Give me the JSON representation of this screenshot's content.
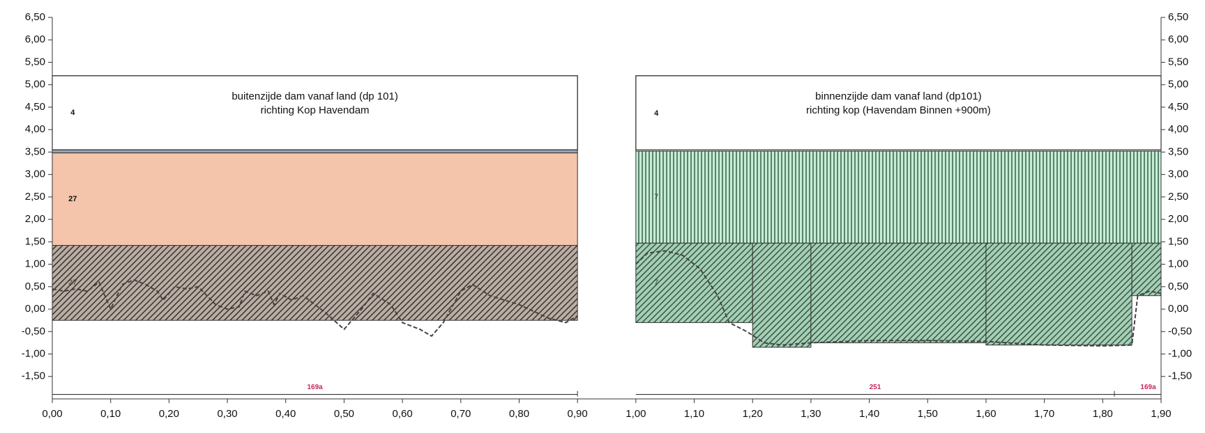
{
  "chart_data": {
    "type": "profile",
    "xlim": [
      0,
      1.9
    ],
    "ylim": [
      -2.0,
      6.5
    ],
    "yticks": [
      {
        "value": 6.5,
        "label": "6,50"
      },
      {
        "value": 6.0,
        "label": "6,00"
      },
      {
        "value": 5.5,
        "label": "5,50"
      },
      {
        "value": 5.0,
        "label": "5,00"
      },
      {
        "value": 4.5,
        "label": "4,50"
      },
      {
        "value": 4.0,
        "label": "4,00"
      },
      {
        "value": 3.5,
        "label": "3,50"
      },
      {
        "value": 3.0,
        "label": "3,00"
      },
      {
        "value": 2.5,
        "label": "2,50"
      },
      {
        "value": 2.0,
        "label": "2,00"
      },
      {
        "value": 1.5,
        "label": "1,50"
      },
      {
        "value": 1.0,
        "label": "1,00"
      },
      {
        "value": 0.5,
        "label": "0,50"
      },
      {
        "value": 0.0,
        "label": "0,00"
      },
      {
        "value": -0.5,
        "label": "-0,50"
      },
      {
        "value": -1.0,
        "label": "-1,00"
      },
      {
        "value": -1.5,
        "label": "-1,50"
      }
    ],
    "xticks": [
      {
        "value": 0.0,
        "label": "0,00"
      },
      {
        "value": 0.1,
        "label": "0,10"
      },
      {
        "value": 0.2,
        "label": "0,20"
      },
      {
        "value": 0.3,
        "label": "0,30"
      },
      {
        "value": 0.4,
        "label": "0,40"
      },
      {
        "value": 0.5,
        "label": "0,50"
      },
      {
        "value": 0.6,
        "label": "0,60"
      },
      {
        "value": 0.7,
        "label": "0,70"
      },
      {
        "value": 0.8,
        "label": "0,80"
      },
      {
        "value": 0.9,
        "label": "0,90"
      },
      {
        "value": 1.0,
        "label": "1,00"
      },
      {
        "value": 1.1,
        "label": "1,10"
      },
      {
        "value": 1.2,
        "label": "1,20"
      },
      {
        "value": 1.3,
        "label": "1,30"
      },
      {
        "value": 1.4,
        "label": "1,40"
      },
      {
        "value": 1.5,
        "label": "1,50"
      },
      {
        "value": 1.6,
        "label": "1,60"
      },
      {
        "value": 1.7,
        "label": "1,70"
      },
      {
        "value": 1.8,
        "label": "1,80"
      },
      {
        "value": 1.9,
        "label": "1,90"
      }
    ],
    "panels": [
      {
        "x0": 0.0,
        "x1": 0.9,
        "top": 5.2,
        "title": [
          "buitenzijde dam vanaf land (dp 101)",
          "richting Kop Havendam"
        ]
      },
      {
        "x0": 1.0,
        "x1": 1.9,
        "top": 5.2,
        "title": [
          "binnenzijde dam vanaf land (dp101)",
          "richting kop (Havendam Binnen +900m)"
        ]
      }
    ],
    "layers": [
      {
        "x0": 0.0,
        "x1": 0.9,
        "bottom": 3.55,
        "top": 5.2,
        "label": "4",
        "pattern": "plain",
        "color": "#ffffff"
      },
      {
        "x0": 0.0,
        "x1": 0.9,
        "bottom": 3.48,
        "top": 3.55,
        "pattern": "plain",
        "color": "#9aa3b0"
      },
      {
        "x0": 0.0,
        "x1": 0.9,
        "bottom": 1.42,
        "top": 3.48,
        "label": "27",
        "pattern": "plain",
        "color": "#f4c4ab"
      },
      {
        "x0": 0.0,
        "x1": 0.9,
        "bottom": -0.25,
        "top": 1.42,
        "label": "27",
        "pattern": "diagonal",
        "color": "#8e7f74"
      },
      {
        "x0": 1.0,
        "x1": 1.9,
        "bottom": 3.52,
        "top": 5.2,
        "label": "4",
        "pattern": "plain",
        "color": "#ffffff"
      },
      {
        "x0": 1.0,
        "x1": 1.9,
        "bottom": 1.47,
        "top": 3.52,
        "label": "7",
        "pattern": "vertical",
        "color": "#bfe7cf"
      },
      {
        "x0": 1.0,
        "x1": 1.2,
        "bottom": -0.3,
        "top": 1.47,
        "label": "7",
        "pattern": "diagonal",
        "color": "#6f9d83"
      },
      {
        "x0": 1.2,
        "x1": 1.3,
        "bottom": -0.85,
        "top": 1.47,
        "pattern": "diagonal",
        "color": "#6f9d83"
      },
      {
        "x0": 1.3,
        "x1": 1.6,
        "bottom": -0.75,
        "top": 1.47,
        "pattern": "diagonal",
        "color": "#6f9d83"
      },
      {
        "x0": 1.6,
        "x1": 1.85,
        "bottom": -0.8,
        "top": 1.47,
        "pattern": "diagonal",
        "color": "#6f9d83"
      },
      {
        "x0": 1.85,
        "x1": 1.9,
        "bottom": 0.3,
        "top": 1.47,
        "pattern": "diagonal",
        "color": "#6f9d83"
      }
    ],
    "profile": {
      "color": "#444444",
      "x": [
        0.0,
        0.02,
        0.04,
        0.06,
        0.08,
        0.1,
        0.12,
        0.14,
        0.16,
        0.18,
        0.19,
        0.21,
        0.23,
        0.25,
        0.28,
        0.3,
        0.32,
        0.33,
        0.35,
        0.37,
        0.38,
        0.39,
        0.41,
        0.43,
        0.45,
        0.47,
        0.5,
        0.53,
        0.55,
        0.58,
        0.6,
        0.63,
        0.65,
        0.67,
        0.7,
        0.72,
        0.75,
        0.8,
        0.85,
        0.88,
        0.9,
        0.95,
        1.0,
        1.02,
        1.05,
        1.08,
        1.11,
        1.14,
        1.16,
        1.19,
        1.22,
        1.25,
        1.3,
        1.4,
        1.5,
        1.6,
        1.7,
        1.8,
        1.85,
        1.86,
        1.88,
        1.9
      ],
      "values": [
        0.45,
        0.4,
        0.45,
        0.4,
        0.6,
        0.0,
        0.55,
        0.65,
        0.55,
        0.4,
        0.2,
        0.5,
        0.45,
        0.5,
        0.1,
        0.0,
        0.05,
        0.4,
        0.3,
        0.4,
        0.1,
        0.35,
        0.2,
        0.3,
        0.1,
        -0.1,
        -0.45,
        0.0,
        0.35,
        0.1,
        -0.3,
        -0.45,
        -0.6,
        -0.3,
        0.4,
        0.55,
        0.3,
        0.1,
        -0.2,
        -0.3,
        -0.15,
        null,
        1.0,
        1.25,
        1.3,
        1.2,
        0.9,
        0.3,
        -0.3,
        -0.5,
        -0.75,
        -0.8,
        -0.75,
        -0.7,
        -0.7,
        -0.72,
        -0.8,
        -0.82,
        -0.8,
        0.3,
        0.4,
        0.35
      ]
    },
    "strip": {
      "level": -1.9,
      "color": "#c8285a",
      "segments": [
        {
          "x0": 0.0,
          "x1": 0.9,
          "label": "169a"
        },
        {
          "x0": 1.0,
          "x1": 1.82,
          "label": "251"
        },
        {
          "x0": 1.82,
          "x1": 1.9,
          "label": "169a"
        }
      ]
    }
  }
}
